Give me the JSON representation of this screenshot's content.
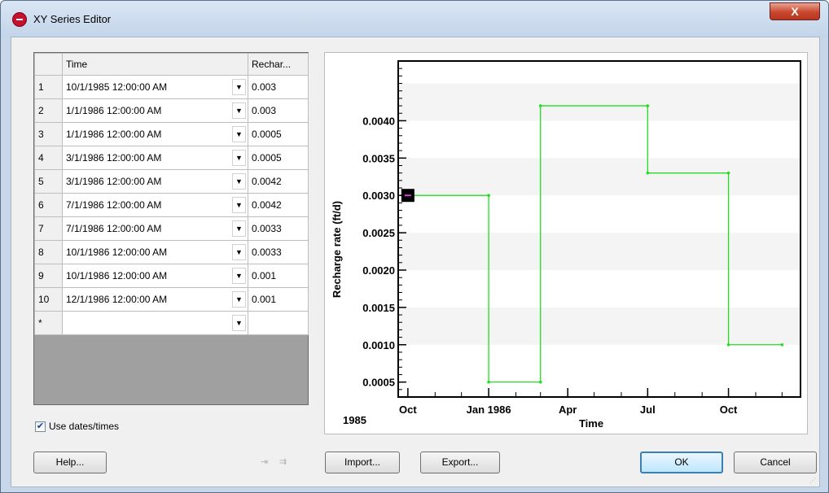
{
  "window": {
    "title": "XY Series Editor",
    "close_label": "X"
  },
  "grid": {
    "headers": {
      "time": "Time",
      "value": "Rechar..."
    },
    "rows": [
      {
        "n": "1",
        "time": "10/1/1985 12:00:00 AM",
        "value": "0.003"
      },
      {
        "n": "2",
        "time": "1/1/1986 12:00:00 AM",
        "value": "0.003"
      },
      {
        "n": "3",
        "time": "1/1/1986 12:00:00 AM",
        "value": "0.0005"
      },
      {
        "n": "4",
        "time": "3/1/1986 12:00:00 AM",
        "value": "0.0005"
      },
      {
        "n": "5",
        "time": "3/1/1986 12:00:00 AM",
        "value": "0.0042"
      },
      {
        "n": "6",
        "time": "7/1/1986 12:00:00 AM",
        "value": "0.0042"
      },
      {
        "n": "7",
        "time": "7/1/1986 12:00:00 AM",
        "value": "0.0033"
      },
      {
        "n": "8",
        "time": "10/1/1986 12:00:00 AM",
        "value": "0.0033"
      },
      {
        "n": "9",
        "time": "10/1/1986 12:00:00 AM",
        "value": "0.001"
      },
      {
        "n": "10",
        "time": "12/1/1986 12:00:00 AM",
        "value": "0.001"
      }
    ],
    "new_row_marker": "*"
  },
  "options": {
    "use_dates_label": "Use dates/times",
    "use_dates_checked": true
  },
  "buttons": {
    "help": "Help...",
    "import": "Import...",
    "export": "Export...",
    "ok": "OK",
    "cancel": "Cancel"
  },
  "chart_data": {
    "type": "line",
    "title": "",
    "xlabel": "Time",
    "ylabel": "Recharge rate (ft/d)",
    "x": [
      "1985-10-01",
      "1986-01-01",
      "1986-01-01",
      "1986-03-01",
      "1986-03-01",
      "1986-07-01",
      "1986-07-01",
      "1986-10-01",
      "1986-10-01",
      "1986-12-01"
    ],
    "y": [
      0.003,
      0.003,
      0.0005,
      0.0005,
      0.0042,
      0.0042,
      0.0033,
      0.0033,
      0.001,
      0.001
    ],
    "x_tick_labels": [
      "Oct",
      "Jan 1986",
      "Apr",
      "Jul",
      "Oct"
    ],
    "x_tick_dates": [
      "1985-10-01",
      "1986-01-01",
      "1986-04-01",
      "1986-07-01",
      "1986-10-01"
    ],
    "x_range": [
      "1985-09-20",
      "1986-12-22"
    ],
    "x_year_label": "1985",
    "y_ticks": [
      "0.0005",
      "0.0010",
      "0.0015",
      "0.0020",
      "0.0025",
      "0.0030",
      "0.0035",
      "0.0040"
    ],
    "ylim": [
      0.0003,
      0.0048
    ],
    "grid": "alternating bands",
    "line_color": "#22dd22",
    "selected_point_index": 0
  }
}
